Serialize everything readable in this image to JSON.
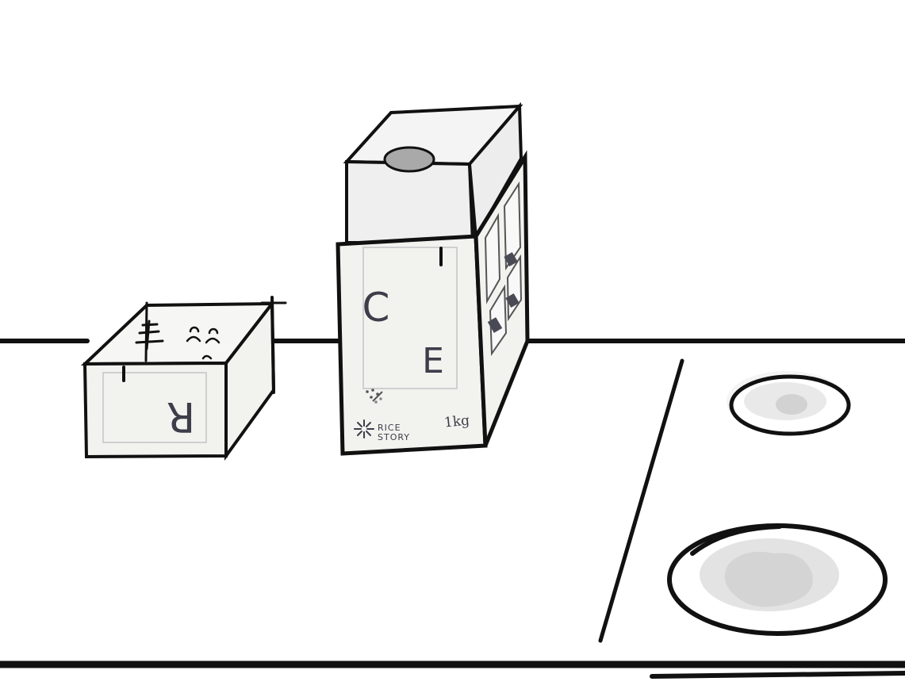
{
  "scene": {
    "background_color": "#ffffff",
    "line_color": "#111111",
    "box_face_color": "#f2f2ef",
    "lid_color": "#efefef",
    "plate_shadow_color": "#dcdcdc",
    "ink_color": "#3d3d4a"
  },
  "small_box": {
    "letter_front": "R"
  },
  "rice_box": {
    "letter_c": "C",
    "letter_e": "E",
    "brand_line1": "RICE",
    "brand_line2": "STORY",
    "weight": "1kg",
    "brand_icon": "sun-burst-icon"
  }
}
